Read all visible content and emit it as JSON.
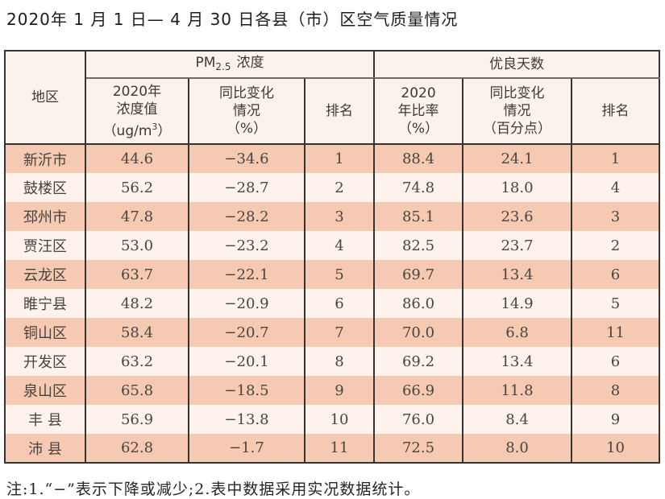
{
  "title": "2020年 1 月 1 日— 4 月 30 日各县（市）区空气质量情况",
  "note": "注:1.“−”表示下降或减少;2.表中数据采用实况数据统计。",
  "colors": {
    "row_stripe_peach": "#f6c9b3",
    "row_stripe_light": "#fdf2ec",
    "header_background": "#fcf2ec",
    "border_dark": "#363432",
    "text_dark": "#4b4440"
  },
  "table": {
    "region_header": "地区",
    "pm25_group": {
      "prefix": "PM",
      "sub": "2.5",
      "suffix": "浓度"
    },
    "good_group": "优良天数",
    "col_pm25_value": {
      "line1": "2020年",
      "line2": "浓度值",
      "unit_pre": "（ug/m",
      "unit_sup": "3",
      "unit_post": "）"
    },
    "col_pm25_change": "同比变化\n情况\n（%）",
    "col_rank1": "排名",
    "col_good_rate": "2020\n年比率\n（%）",
    "col_good_change": "同比变化\n情况\n（百分点）",
    "col_rank2": "排名",
    "rows": [
      {
        "region": "新沂市",
        "pm25": "44.6",
        "pm25_change": "−34.6",
        "pm25_rank": "1",
        "good_rate": "88.4",
        "good_change": "24.1",
        "good_rank": "1"
      },
      {
        "region": "鼓楼区",
        "pm25": "56.2",
        "pm25_change": "−28.7",
        "pm25_rank": "2",
        "good_rate": "74.8",
        "good_change": "18.0",
        "good_rank": "4"
      },
      {
        "region": "邳州市",
        "pm25": "47.8",
        "pm25_change": "−28.2",
        "pm25_rank": "3",
        "good_rate": "85.1",
        "good_change": "23.6",
        "good_rank": "3"
      },
      {
        "region": "贾汪区",
        "pm25": "53.0",
        "pm25_change": "−23.2",
        "pm25_rank": "4",
        "good_rate": "82.5",
        "good_change": "23.7",
        "good_rank": "2"
      },
      {
        "region": "云龙区",
        "pm25": "63.7",
        "pm25_change": "−22.1",
        "pm25_rank": "5",
        "good_rate": "69.7",
        "good_change": "13.4",
        "good_rank": "6"
      },
      {
        "region": "睢宁县",
        "pm25": "48.2",
        "pm25_change": "−20.9",
        "pm25_rank": "6",
        "good_rate": "86.0",
        "good_change": "14.9",
        "good_rank": "5"
      },
      {
        "region": "铜山区",
        "pm25": "58.4",
        "pm25_change": "−20.7",
        "pm25_rank": "7",
        "good_rate": "70.0",
        "good_change": "6.8",
        "good_rank": "11"
      },
      {
        "region": "开发区",
        "pm25": "63.2",
        "pm25_change": "−20.1",
        "pm25_rank": "8",
        "good_rate": "69.2",
        "good_change": "13.4",
        "good_rank": "6"
      },
      {
        "region": "泉山区",
        "pm25": "65.8",
        "pm25_change": "−18.5",
        "pm25_rank": "9",
        "good_rate": "66.9",
        "good_change": "11.8",
        "good_rank": "8"
      },
      {
        "region": "丰 县",
        "pm25": "56.9",
        "pm25_change": "−13.8",
        "pm25_rank": "10",
        "good_rate": "76.0",
        "good_change": "8.4",
        "good_rank": "9"
      },
      {
        "region": "沛 县",
        "pm25": "62.8",
        "pm25_change": "−1.7",
        "pm25_rank": "11",
        "good_rate": "72.5",
        "good_change": "8.0",
        "good_rank": "10"
      }
    ]
  }
}
